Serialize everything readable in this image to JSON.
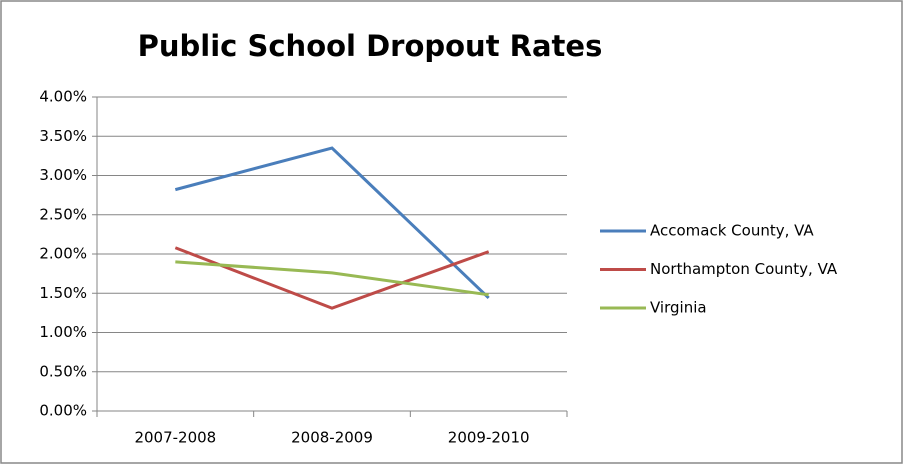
{
  "chart_data": {
    "type": "line",
    "title": "Public School Dropout Rates",
    "categories": [
      "2007-2008",
      "2008-2009",
      "2009-2010"
    ],
    "series": [
      {
        "name": "Accomack County, VA",
        "color": "#4a7ebb",
        "values": [
          2.82,
          3.35,
          1.44
        ]
      },
      {
        "name": "Northampton County, VA",
        "color": "#be4b48",
        "values": [
          2.08,
          1.31,
          2.03
        ]
      },
      {
        "name": "Virginia",
        "color": "#98b954",
        "values": [
          1.9,
          1.76,
          1.48
        ]
      }
    ],
    "ylim": [
      0,
      4
    ],
    "yticks": [
      {
        "value": 0,
        "label": "0.00%"
      },
      {
        "value": 0.5,
        "label": "0.50%"
      },
      {
        "value": 1,
        "label": "1.00%"
      },
      {
        "value": 1.5,
        "label": "1.50%"
      },
      {
        "value": 2,
        "label": "2.00%"
      },
      {
        "value": 2.5,
        "label": "2.50%"
      },
      {
        "value": 3,
        "label": "3.00%"
      },
      {
        "value": 3.5,
        "label": "3.50%"
      },
      {
        "value": 4,
        "label": "4.00%"
      }
    ],
    "grid": true,
    "legend": "right"
  }
}
